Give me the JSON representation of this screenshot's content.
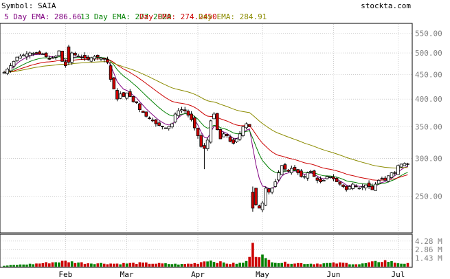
{
  "header": {
    "symbol_text": "Symbol: SAIA",
    "site": "stockta.com"
  },
  "legend": [
    {
      "label": "5 Day EMA: 286.66",
      "color": "#800080"
    },
    {
      "label": "13 Day EMA: 277.2020",
      "color": "#008000"
    },
    {
      "label": "Day EMA: 274.2450",
      "color": "#cc0000"
    },
    {
      "label": "Day EMA: 284.91",
      "color": "#8b8b00"
    }
  ],
  "colors": {
    "up": "#008000",
    "down": "#cc0000",
    "grid": "#b0b0b0",
    "text": "#000000",
    "right_axis_text": "#808080"
  },
  "chart_data": {
    "type": "candlestick",
    "price_axis": {
      "scale": "log",
      "ticks": [
        550,
        500,
        450,
        400,
        350,
        300,
        250
      ],
      "tick_labels": [
        "550.00",
        "500.00",
        "450.00",
        "400.00",
        "350.00",
        "300.00",
        "250.00"
      ],
      "range": [
        210,
        575
      ]
    },
    "volume_axis": {
      "ticks": [
        4.28,
        2.86,
        1.43
      ],
      "tick_labels": [
        "4.28 M",
        "2.86 M",
        "1.43 M"
      ],
      "unit": "M",
      "range": [
        0,
        5.3
      ]
    },
    "x_labels": [
      "Feb",
      "Mar",
      "Apr",
      "May",
      "Jun",
      "Jul"
    ],
    "month_start_index": [
      19,
      38,
      60,
      80,
      102,
      122
    ],
    "n_sessions": 126,
    "anchors": [
      [
        0,
        455
      ],
      [
        2,
        470
      ],
      [
        4,
        490
      ],
      [
        6,
        495
      ],
      [
        8,
        500
      ],
      [
        10,
        498
      ],
      [
        12,
        497
      ],
      [
        14,
        485
      ],
      [
        16,
        492
      ],
      [
        17,
        505
      ],
      [
        18,
        480
      ],
      [
        19,
        470
      ],
      [
        20,
        478
      ],
      [
        21,
        500
      ],
      [
        22,
        495
      ],
      [
        24,
        490
      ],
      [
        26,
        485
      ],
      [
        28,
        492
      ],
      [
        30,
        488
      ],
      [
        31,
        485
      ],
      [
        32,
        478
      ],
      [
        33,
        440
      ],
      [
        34,
        420
      ],
      [
        35,
        400
      ],
      [
        36,
        410
      ],
      [
        37,
        405
      ],
      [
        38,
        412
      ],
      [
        39,
        405
      ],
      [
        40,
        395
      ],
      [
        41,
        393
      ],
      [
        42,
        380
      ],
      [
        43,
        375
      ],
      [
        44,
        368
      ],
      [
        45,
        365
      ],
      [
        46,
        360
      ],
      [
        47,
        355
      ],
      [
        48,
        352
      ],
      [
        49,
        350
      ],
      [
        50,
        348
      ],
      [
        51,
        350
      ],
      [
        52,
        355
      ],
      [
        53,
        372
      ],
      [
        54,
        378
      ],
      [
        55,
        380
      ],
      [
        56,
        378
      ],
      [
        57,
        370
      ],
      [
        58,
        362
      ],
      [
        59,
        348
      ],
      [
        60,
        335
      ],
      [
        61,
        318
      ],
      [
        62,
        315
      ],
      [
        63,
        328
      ],
      [
        64,
        360
      ],
      [
        65,
        372
      ],
      [
        66,
        345
      ],
      [
        67,
        330
      ],
      [
        68,
        338
      ],
      [
        69,
        335
      ],
      [
        70,
        326
      ],
      [
        71,
        323
      ],
      [
        72,
        330
      ],
      [
        73,
        338
      ],
      [
        74,
        350
      ],
      [
        75,
        355
      ],
      [
        76,
        350
      ],
      [
        77,
        258
      ],
      [
        78,
        240
      ],
      [
        79,
        236
      ],
      [
        80,
        242
      ],
      [
        81,
        260
      ],
      [
        82,
        255
      ],
      [
        83,
        260
      ],
      [
        84,
        268
      ],
      [
        85,
        280
      ],
      [
        86,
        290
      ],
      [
        87,
        285
      ],
      [
        88,
        282
      ],
      [
        89,
        286
      ],
      [
        90,
        284
      ],
      [
        91,
        280
      ],
      [
        92,
        275
      ],
      [
        93,
        275
      ],
      [
        94,
        280
      ],
      [
        95,
        282
      ],
      [
        96,
        275
      ],
      [
        97,
        270
      ],
      [
        98,
        268
      ],
      [
        99,
        270
      ],
      [
        100,
        275
      ],
      [
        101,
        275
      ],
      [
        102,
        272
      ],
      [
        103,
        268
      ],
      [
        104,
        265
      ],
      [
        105,
        262
      ],
      [
        106,
        258
      ],
      [
        107,
        262
      ],
      [
        108,
        265
      ],
      [
        109,
        262
      ],
      [
        110,
        260
      ],
      [
        111,
        262
      ],
      [
        112,
        264
      ],
      [
        113,
        262
      ],
      [
        114,
        258
      ],
      [
        115,
        265
      ],
      [
        116,
        270
      ],
      [
        117,
        272
      ],
      [
        118,
        270
      ],
      [
        119,
        276
      ],
      [
        120,
        280
      ],
      [
        121,
        280
      ],
      [
        122,
        290
      ],
      [
        123,
        292
      ],
      [
        124,
        293
      ],
      [
        125,
        292
      ]
    ],
    "volume_anchors": [
      [
        0,
        0.15
      ],
      [
        10,
        0.5
      ],
      [
        19,
        0.9
      ],
      [
        25,
        0.6
      ],
      [
        35,
        0.5
      ],
      [
        42,
        0.6
      ],
      [
        55,
        0.4
      ],
      [
        60,
        0.6
      ],
      [
        63,
        1.1
      ],
      [
        66,
        0.8
      ],
      [
        70,
        0.5
      ],
      [
        74,
        0.6
      ],
      [
        76,
        1.4
      ],
      [
        77,
        5.0
      ],
      [
        78,
        2.0
      ],
      [
        79,
        2.1
      ],
      [
        80,
        1.8
      ],
      [
        81,
        1.2
      ],
      [
        85,
        0.7
      ],
      [
        95,
        0.5
      ],
      [
        105,
        0.6
      ],
      [
        110,
        0.4
      ],
      [
        115,
        0.8
      ],
      [
        118,
        1.0
      ],
      [
        122,
        0.6
      ],
      [
        125,
        0.5
      ]
    ]
  }
}
